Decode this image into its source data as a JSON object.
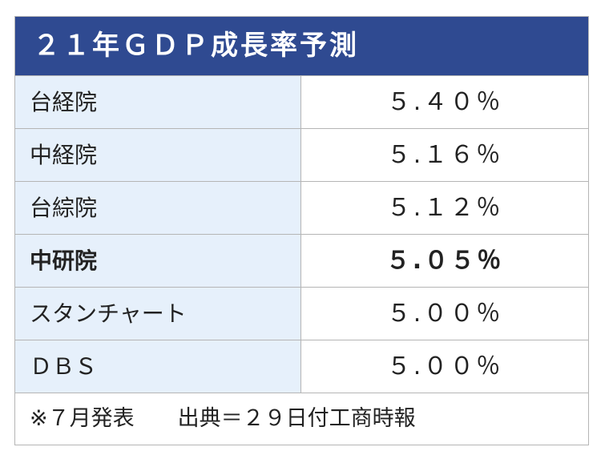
{
  "header": {
    "title": "２１年ＧＤＰ成長率予測"
  },
  "table": {
    "rows": [
      [
        "台経院",
        "５.４０％"
      ],
      [
        "中経院",
        "５.１６％"
      ],
      [
        "台綜院",
        "５.１２％"
      ],
      [
        "中研院",
        "５.０５％"
      ],
      [
        "スタンチャート",
        "５.００％"
      ],
      [
        "ＤＢＳ",
        "５.００％"
      ]
    ]
  },
  "footer": {
    "note": "※７月発表　　出典＝２９日付工商時報"
  }
}
